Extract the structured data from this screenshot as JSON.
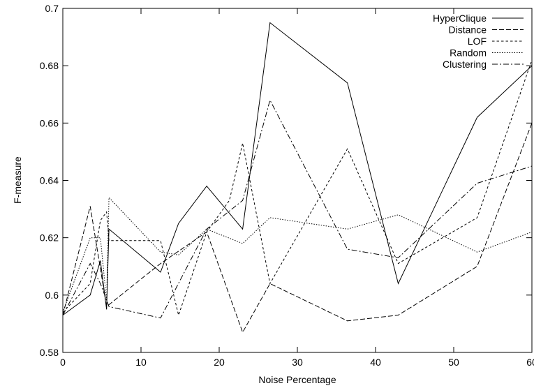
{
  "chart_data": {
    "type": "line",
    "title": "",
    "xlabel": "Noise Percentage",
    "ylabel": "F-measure",
    "xlim": [
      0,
      60
    ],
    "ylim": [
      0.58,
      0.7
    ],
    "x_ticks": [
      "0",
      "10",
      "20",
      "30",
      "40",
      "50",
      "60"
    ],
    "y_ticks": [
      "0.58",
      "0.6",
      "0.62",
      "0.64",
      "0.66",
      "0.68",
      "0.7"
    ],
    "grid": false,
    "legend_position": "top-right",
    "series": [
      {
        "name": "HyperClique",
        "dash": "solid",
        "points": [
          [
            0,
            0.593
          ],
          [
            3.5,
            0.6
          ],
          [
            4.8,
            0.612
          ],
          [
            5.6,
            0.595
          ],
          [
            5.9,
            0.623
          ],
          [
            12.5,
            0.608
          ],
          [
            14.8,
            0.625
          ],
          [
            18.4,
            0.638
          ],
          [
            23.0,
            0.623
          ],
          [
            26.5,
            0.695
          ],
          [
            36.4,
            0.674
          ],
          [
            42.9,
            0.604
          ],
          [
            53.0,
            0.662
          ],
          [
            60,
            0.68
          ]
        ]
      },
      {
        "name": "Distance",
        "dash": "dashed",
        "points": [
          [
            0,
            0.593
          ],
          [
            3.5,
            0.631
          ],
          [
            5.6,
            0.596
          ],
          [
            12.5,
            0.611
          ],
          [
            18.4,
            0.622
          ],
          [
            23.0,
            0.587
          ],
          [
            26.5,
            0.604
          ],
          [
            36.4,
            0.591
          ],
          [
            42.9,
            0.593
          ],
          [
            53.0,
            0.61
          ],
          [
            60,
            0.66
          ]
        ]
      },
      {
        "name": "LOF",
        "dash": "short-dashed",
        "points": [
          [
            0,
            0.594
          ],
          [
            3.5,
            0.604
          ],
          [
            4.8,
            0.626
          ],
          [
            5.6,
            0.629
          ],
          [
            5.9,
            0.619
          ],
          [
            12.5,
            0.619
          ],
          [
            14.8,
            0.593
          ],
          [
            18.4,
            0.622
          ],
          [
            21.3,
            0.633
          ],
          [
            23.0,
            0.653
          ],
          [
            26.5,
            0.604
          ],
          [
            36.4,
            0.651
          ],
          [
            42.9,
            0.611
          ],
          [
            53.0,
            0.627
          ],
          [
            60,
            0.682
          ]
        ]
      },
      {
        "name": "Random",
        "dash": "dotted",
        "points": [
          [
            0,
            0.594
          ],
          [
            3.5,
            0.62
          ],
          [
            4.8,
            0.62
          ],
          [
            5.6,
            0.598
          ],
          [
            5.9,
            0.634
          ],
          [
            12.5,
            0.615
          ],
          [
            14.8,
            0.614
          ],
          [
            18.4,
            0.623
          ],
          [
            23.0,
            0.618
          ],
          [
            26.5,
            0.627
          ],
          [
            36.4,
            0.623
          ],
          [
            42.9,
            0.628
          ],
          [
            53.0,
            0.615
          ],
          [
            60,
            0.622
          ]
        ]
      },
      {
        "name": "Clustering",
        "dash": "dash-dot",
        "points": [
          [
            0,
            0.593
          ],
          [
            3.5,
            0.611
          ],
          [
            4.8,
            0.604
          ],
          [
            5.9,
            0.596
          ],
          [
            12.5,
            0.592
          ],
          [
            18.4,
            0.623
          ],
          [
            23.0,
            0.633
          ],
          [
            26.5,
            0.668
          ],
          [
            36.4,
            0.616
          ],
          [
            42.9,
            0.613
          ],
          [
            53.0,
            0.639
          ],
          [
            60,
            0.645
          ]
        ]
      }
    ]
  }
}
